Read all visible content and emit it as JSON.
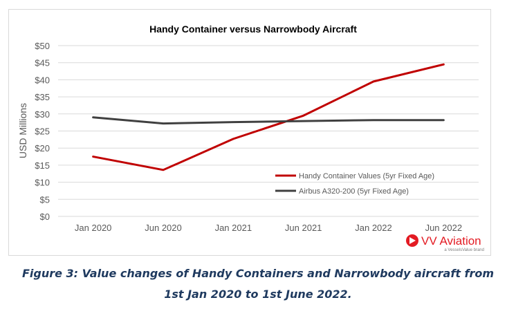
{
  "chart_data": {
    "type": "line",
    "title": "Handy Container versus Narrowbody Aircraft",
    "xlabel": "",
    "ylabel": "USD Millions",
    "categories": [
      "Jan 2020",
      "Jun 2020",
      "Jan 2021",
      "Jun 2021",
      "Jan 2022",
      "Jun 2022"
    ],
    "ylim": [
      0,
      50
    ],
    "yticks": [
      "$0",
      "$5",
      "$10",
      "$15",
      "$20",
      "$25",
      "$30",
      "$35",
      "$40",
      "$45",
      "$50"
    ],
    "grid": true,
    "legend_position": "bottom-right",
    "series": [
      {
        "name": "Handy Container Values (5yr Fixed Age)",
        "color": "#c00000",
        "values": [
          17.5,
          13.6,
          22.7,
          29.5,
          39.5,
          44.5
        ]
      },
      {
        "name": "Airbus A320-200 (5yr Fixed Age)",
        "color": "#404040",
        "values": [
          29.0,
          27.2,
          27.6,
          27.9,
          28.2,
          28.2
        ]
      }
    ]
  },
  "brand": {
    "name": "VV Aviation",
    "tagline": "a VesselsValue brand",
    "logo_color": "#e31b23"
  },
  "caption": {
    "line1": "Figure 3: Value changes of Handy Containers and Narrowbody aircraft from",
    "line2": "1st Jan 2020 to 1st June 2022."
  }
}
